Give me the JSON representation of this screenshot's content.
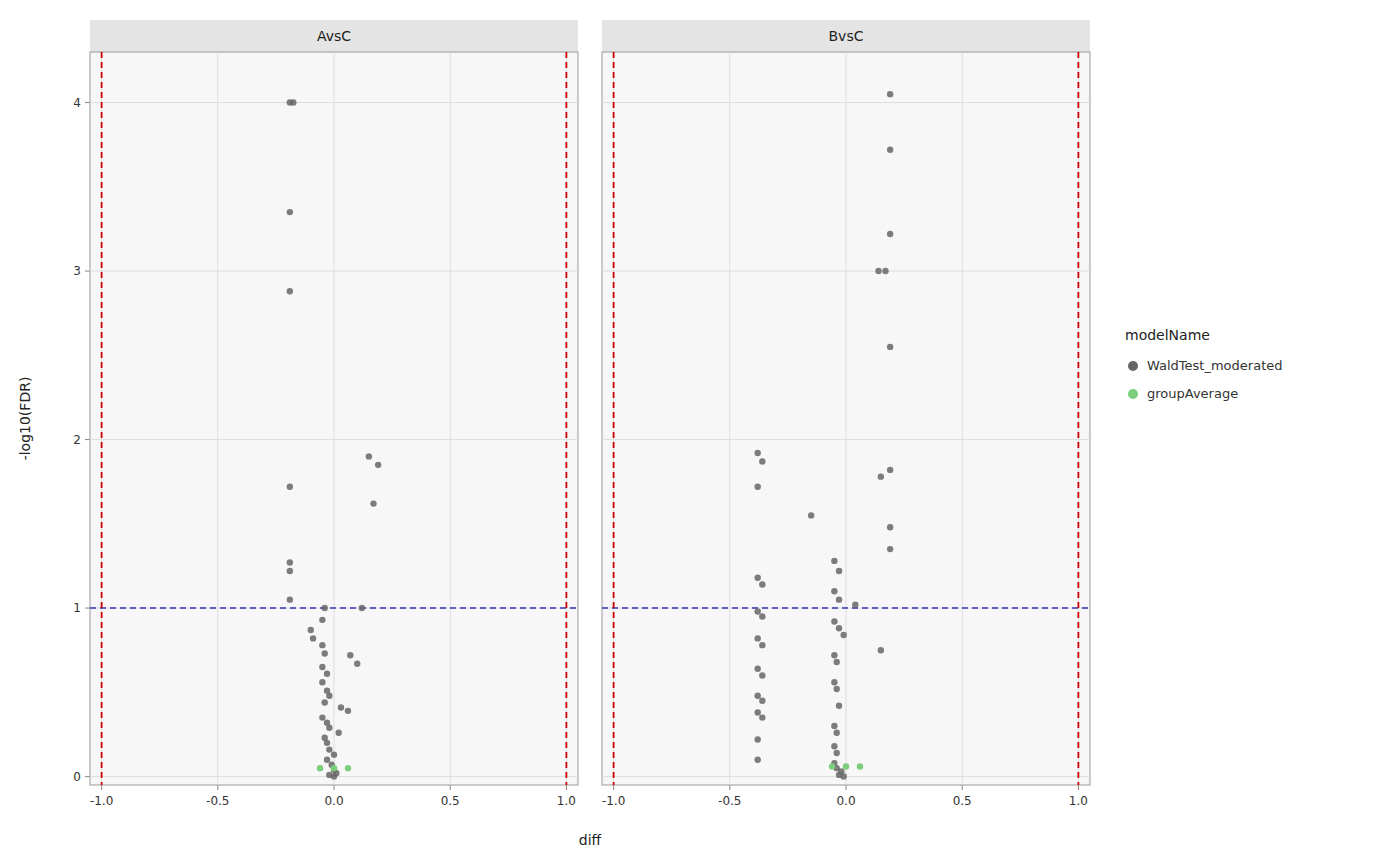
{
  "chart_data": {
    "type": "scatter",
    "xlabel": "diff",
    "ylabel": "-log10(FDR)",
    "legend_title": "modelName",
    "legend": "right",
    "grid": true,
    "xlim": [
      -1.05,
      1.05
    ],
    "ylim": [
      -0.05,
      4.3
    ],
    "xticks": [
      {
        "value": -1.0,
        "label": "-1.0"
      },
      {
        "value": -0.5,
        "label": "-0.5"
      },
      {
        "value": 0.0,
        "label": "0.0"
      },
      {
        "value": 0.5,
        "label": "0.5"
      },
      {
        "value": 1.0,
        "label": "1.0"
      }
    ],
    "yticks": [
      0,
      1,
      2,
      3,
      4
    ],
    "hlines": [
      {
        "value": 1.0,
        "color": "#3333BB",
        "line_style": "dashed"
      }
    ],
    "vlines": [
      {
        "value": -1.0,
        "color": "#CC0000",
        "line_style": "dashed"
      },
      {
        "value": 1.0,
        "color": "#CC0000",
        "line_style": "dashed"
      }
    ],
    "series": [
      {
        "name": "WaldTest_moderated",
        "color": "#666666",
        "marker": "circle"
      },
      {
        "name": "groupAverage",
        "color": "#7CCD7C",
        "marker": "circle"
      }
    ],
    "panels": [
      {
        "title": "AvsC",
        "series": [
          {
            "x": [
              -0.19,
              -0.175,
              -0.19,
              -0.19,
              -0.19,
              -0.19,
              -0.19,
              0.15,
              0.19,
              0.17,
              -0.19,
              -0.04,
              0.12,
              -0.05,
              -0.1,
              -0.09,
              -0.05,
              -0.04,
              0.07,
              0.1,
              -0.05,
              -0.03,
              -0.05,
              -0.03,
              -0.02,
              -0.04,
              0.03,
              0.06,
              -0.05,
              -0.03,
              -0.02,
              0.02,
              -0.04,
              -0.03,
              -0.02,
              0.0,
              -0.03,
              -0.01,
              0.0,
              0.01,
              -0.02,
              0.0
            ],
            "values": [
              4.0,
              4.0,
              3.35,
              2.88,
              1.72,
              1.27,
              1.22,
              1.9,
              1.85,
              1.62,
              1.05,
              1.0,
              1.0,
              0.93,
              0.87,
              0.82,
              0.78,
              0.73,
              0.72,
              0.67,
              0.65,
              0.61,
              0.56,
              0.51,
              0.48,
              0.44,
              0.41,
              0.39,
              0.35,
              0.32,
              0.29,
              0.26,
              0.23,
              0.2,
              0.16,
              0.13,
              0.1,
              0.07,
              0.04,
              0.02,
              0.01,
              0.0
            ]
          },
          {
            "x": [
              -0.06,
              0.0,
              0.06
            ],
            "values": [
              0.05,
              0.05,
              0.05
            ]
          }
        ]
      },
      {
        "title": "BvsC",
        "series": [
          {
            "x": [
              0.19,
              0.19,
              0.19,
              0.14,
              0.17,
              0.19,
              -0.38,
              -0.36,
              0.19,
              0.15,
              -0.38,
              -0.15,
              0.19,
              0.19,
              -0.05,
              -0.03,
              -0.38,
              -0.36,
              -0.05,
              -0.03,
              0.04,
              -0.38,
              -0.36,
              -0.05,
              -0.03,
              -0.01,
              -0.38,
              -0.36,
              0.15,
              -0.05,
              -0.04,
              -0.38,
              -0.36,
              -0.05,
              -0.04,
              -0.38,
              -0.36,
              -0.03,
              -0.38,
              -0.36,
              -0.05,
              -0.04,
              -0.38,
              -0.05,
              -0.04,
              -0.38,
              -0.05,
              -0.04,
              -0.02,
              -0.03,
              -0.01
            ],
            "values": [
              4.05,
              3.72,
              3.22,
              3.0,
              3.0,
              2.55,
              1.92,
              1.87,
              1.82,
              1.78,
              1.72,
              1.55,
              1.48,
              1.35,
              1.28,
              1.22,
              1.18,
              1.14,
              1.1,
              1.05,
              1.02,
              0.98,
              0.95,
              0.92,
              0.88,
              0.84,
              0.82,
              0.78,
              0.75,
              0.72,
              0.68,
              0.64,
              0.6,
              0.56,
              0.52,
              0.48,
              0.45,
              0.42,
              0.38,
              0.35,
              0.3,
              0.26,
              0.22,
              0.18,
              0.14,
              0.1,
              0.08,
              0.05,
              0.03,
              0.01,
              0.0
            ]
          },
          {
            "x": [
              -0.06,
              0.0,
              0.06
            ],
            "values": [
              0.06,
              0.06,
              0.06
            ]
          }
        ]
      }
    ]
  }
}
